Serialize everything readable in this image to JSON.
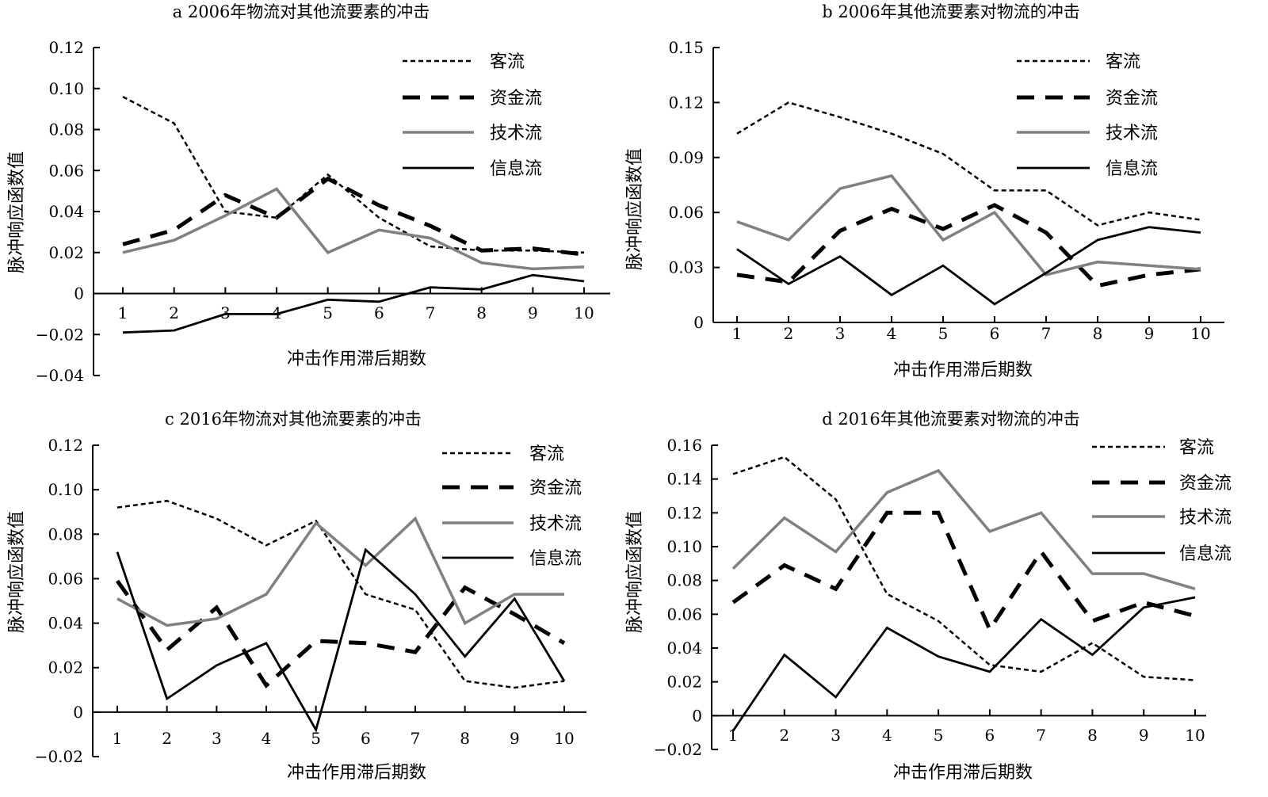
{
  "chart_data": [
    {
      "type": "line",
      "title": "a 2006年物流对其他流要素的冲击",
      "xlabel": "冲击作用滞后期数",
      "ylabel": "脉冲响应函数值",
      "x": [
        1,
        2,
        3,
        4,
        5,
        6,
        7,
        8,
        9,
        10
      ],
      "ylim": [
        -0.04,
        0.12
      ],
      "yticks": [
        "-0.04",
        "-0.02",
        "0",
        "0.02",
        "0.04",
        "0.06",
        "0.08",
        "0.10",
        "0.12"
      ],
      "legend_position": "top-right",
      "series": [
        {
          "name": "客流",
          "values": [
            0.096,
            0.083,
            0.04,
            0.037,
            0.058,
            0.037,
            0.023,
            0.021,
            0.021,
            0.02
          ]
        },
        {
          "name": "资金流",
          "values": [
            0.024,
            0.031,
            0.048,
            0.037,
            0.056,
            0.043,
            0.033,
            0.021,
            0.022,
            0.019
          ]
        },
        {
          "name": "技术流",
          "values": [
            0.02,
            0.026,
            0.038,
            0.051,
            0.02,
            0.031,
            0.027,
            0.015,
            0.012,
            0.013
          ]
        },
        {
          "name": "信息流",
          "values": [
            -0.019,
            -0.018,
            -0.01,
            -0.01,
            -0.003,
            -0.004,
            0.003,
            0.002,
            0.009,
            0.006
          ]
        }
      ]
    },
    {
      "type": "line",
      "title": "b 2006年其他流要素对物流的冲击",
      "xlabel": "冲击作用滞后期数",
      "ylabel": "脉冲响应函数值",
      "x": [
        1,
        2,
        3,
        4,
        5,
        6,
        7,
        8,
        9,
        10
      ],
      "ylim": [
        0,
        0.15
      ],
      "yticks": [
        "0",
        "0.03",
        "0.06",
        "0.09",
        "0.12",
        "0.15"
      ],
      "legend_position": "top-right",
      "series": [
        {
          "name": "客流",
          "values": [
            0.103,
            0.12,
            0.112,
            0.103,
            0.092,
            0.072,
            0.072,
            0.053,
            0.06,
            0.056
          ]
        },
        {
          "name": "资金流",
          "values": [
            0.026,
            0.022,
            0.05,
            0.062,
            0.051,
            0.064,
            0.049,
            0.02,
            0.026,
            0.029
          ]
        },
        {
          "name": "技术流",
          "values": [
            0.055,
            0.045,
            0.073,
            0.08,
            0.045,
            0.06,
            0.026,
            0.033,
            0.031,
            0.029
          ]
        },
        {
          "name": "信息流",
          "values": [
            0.04,
            0.021,
            0.036,
            0.015,
            0.031,
            0.01,
            0.027,
            0.045,
            0.052,
            0.049
          ]
        }
      ]
    },
    {
      "type": "line",
      "title": "c 2016年物流对其他流要素的冲击",
      "xlabel": "冲击作用滞后期数",
      "ylabel": "脉冲响应函数值",
      "x": [
        1,
        2,
        3,
        4,
        5,
        6,
        7,
        8,
        9,
        10
      ],
      "ylim": [
        -0.02,
        0.12
      ],
      "yticks": [
        "-0.02",
        "0",
        "0.02",
        "0.04",
        "0.06",
        "0.08",
        "0.10",
        "0.12"
      ],
      "legend_position": "top-right",
      "series": [
        {
          "name": "客流",
          "values": [
            0.092,
            0.095,
            0.087,
            0.075,
            0.086,
            0.053,
            0.046,
            0.014,
            0.011,
            0.014
          ]
        },
        {
          "name": "资金流",
          "values": [
            0.059,
            0.028,
            0.047,
            0.012,
            0.032,
            0.031,
            0.027,
            0.056,
            0.044,
            0.031
          ]
        },
        {
          "name": "技术流",
          "values": [
            0.051,
            0.039,
            0.042,
            0.053,
            0.085,
            0.066,
            0.087,
            0.04,
            0.053,
            0.053
          ]
        },
        {
          "name": "信息流",
          "values": [
            0.072,
            0.006,
            0.021,
            0.031,
            -0.008,
            0.073,
            0.053,
            0.025,
            0.051,
            0.014
          ]
        }
      ]
    },
    {
      "type": "line",
      "title": "d 2016年其他流要素对物流的冲击",
      "xlabel": "冲击作用滞后期数",
      "ylabel": "脉冲响应函数值",
      "x": [
        1,
        2,
        3,
        4,
        5,
        6,
        7,
        8,
        9,
        10
      ],
      "ylim": [
        -0.02,
        0.16
      ],
      "yticks": [
        "-0.02",
        "0",
        "0.02",
        "0.04",
        "0.06",
        "0.08",
        "0.10",
        "0.12",
        "0.14",
        "0.16"
      ],
      "legend_position": "top-right",
      "series": [
        {
          "name": "客流",
          "values": [
            0.143,
            0.153,
            0.128,
            0.072,
            0.056,
            0.03,
            0.026,
            0.043,
            0.023,
            0.021
          ]
        },
        {
          "name": "资金流",
          "values": [
            0.067,
            0.089,
            0.075,
            0.12,
            0.12,
            0.051,
            0.097,
            0.056,
            0.067,
            0.059
          ]
        },
        {
          "name": "技术流",
          "values": [
            0.087,
            0.117,
            0.097,
            0.132,
            0.145,
            0.109,
            0.12,
            0.084,
            0.084,
            0.075
          ]
        },
        {
          "name": "信息流",
          "values": [
            -0.009,
            0.036,
            0.011,
            0.052,
            0.035,
            0.026,
            0.057,
            0.036,
            0.064,
            0.07
          ]
        }
      ]
    }
  ],
  "series_styles": [
    {
      "color": "#000000",
      "stroke_width": 2.5,
      "dash": "6,4"
    },
    {
      "color": "#000000",
      "stroke_width": 5,
      "dash": "22,14"
    },
    {
      "color": "#808080",
      "stroke_width": 3.5,
      "dash": ""
    },
    {
      "color": "#000000",
      "stroke_width": 2.8,
      "dash": ""
    }
  ]
}
